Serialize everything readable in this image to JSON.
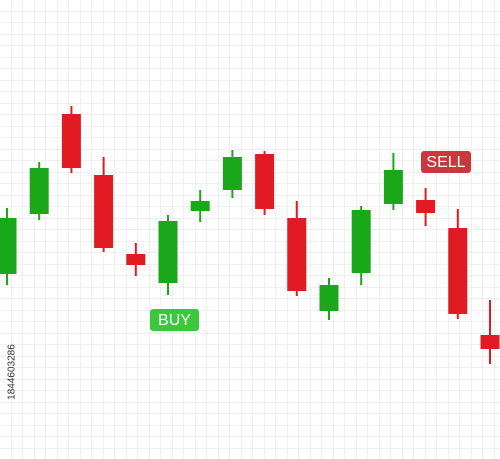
{
  "chart_data": {
    "type": "candlestick",
    "open": [
      185,
      245,
      345,
      284,
      205,
      176,
      248,
      269,
      305,
      241,
      148,
      186,
      255,
      259,
      231,
      124
    ],
    "high": [
      251,
      297,
      353,
      302,
      216,
      244,
      269,
      309,
      308,
      258,
      181,
      253,
      306,
      271,
      250,
      159
    ],
    "low": [
      174,
      239,
      286,
      207,
      183,
      164,
      237,
      261,
      244,
      163,
      139,
      174,
      249,
      233,
      140,
      95
    ],
    "close": [
      241,
      291,
      291,
      211,
      194,
      238,
      258,
      302,
      250,
      168,
      174,
      249,
      289,
      246,
      145,
      110
    ],
    "up_color": "#1aa81a",
    "down_color": "#e01b24",
    "ylim": [
      0,
      459
    ],
    "grid": true,
    "annotations": [
      {
        "text": "BUY",
        "color": "#3cc83c"
      },
      {
        "text": "SELL",
        "color": "#c8383c"
      }
    ],
    "watermark_id": "1844603286"
  }
}
